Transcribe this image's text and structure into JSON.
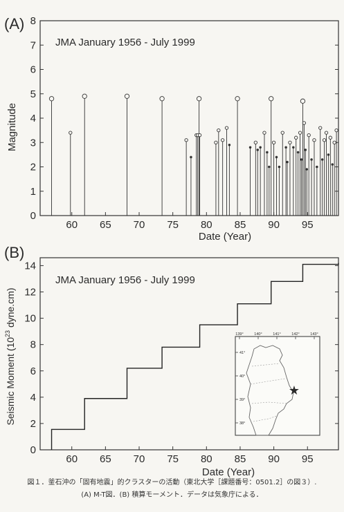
{
  "chart_data": [
    {
      "type": "scatter",
      "panel_label": "(A)",
      "title": "JMA  January 1956 - July 1999",
      "xlabel": "Date (Year)",
      "ylabel": "Magnitude",
      "xlim": [
        1955.3,
        1999.6
      ],
      "ylim": [
        0,
        8
      ],
      "xticks": [
        60,
        65,
        70,
        75,
        80,
        85,
        90,
        95
      ],
      "yticks": [
        0,
        1,
        2,
        3,
        4,
        5,
        6,
        7,
        8
      ],
      "grid": false,
      "x": [
        1957.0,
        1959.8,
        1961.9,
        1968.2,
        1973.4,
        1977.0,
        1977.7,
        1978.5,
        1978.7,
        1978.9,
        1979.0,
        1981.4,
        1981.8,
        1982.4,
        1983.0,
        1983.4,
        1984.6,
        1986.5,
        1987.3,
        1987.6,
        1988.0,
        1988.6,
        1989.0,
        1989.3,
        1989.6,
        1990.0,
        1990.4,
        1990.8,
        1991.3,
        1991.8,
        1992.0,
        1992.4,
        1992.9,
        1993.3,
        1993.6,
        1993.9,
        1994.1,
        1994.3,
        1994.5,
        1994.7,
        1994.9,
        1995.2,
        1995.6,
        1996.0,
        1996.4,
        1996.9,
        1997.2,
        1997.5,
        1997.8,
        1998.1,
        1998.4,
        1998.7,
        1999.0,
        1999.3
      ],
      "values": [
        4.8,
        3.4,
        4.9,
        4.9,
        4.8,
        3.1,
        2.4,
        3.3,
        3.3,
        4.8,
        3.3,
        3.0,
        3.5,
        3.1,
        3.6,
        2.9,
        4.8,
        2.8,
        3.0,
        2.7,
        2.8,
        3.4,
        2.6,
        2.0,
        4.8,
        3.0,
        2.4,
        2.0,
        3.4,
        2.8,
        2.2,
        3.0,
        2.8,
        3.2,
        2.6,
        3.4,
        2.3,
        4.7,
        3.8,
        2.7,
        1.9,
        3.3,
        2.3,
        3.1,
        2.0,
        3.6,
        2.3,
        3.1,
        3.4,
        2.5,
        3.2,
        2.1,
        3.0,
        3.5
      ]
    },
    {
      "type": "line",
      "step": true,
      "panel_label": "(B)",
      "title": "JMA  January 1956 - July 1999",
      "xlabel": "Date (Year)",
      "ylabel_main": "Seismic Moment (10",
      "ylabel_sup": "23",
      "ylabel_tail": " dyne.cm)",
      "xlim": [
        1955.3,
        1999.6
      ],
      "ylim": [
        0,
        14.6
      ],
      "xticks": [
        60,
        65,
        70,
        75,
        80,
        85,
        90,
        95
      ],
      "yticks": [
        0,
        2,
        4,
        6,
        8,
        10,
        12,
        14
      ],
      "grid": false,
      "x": [
        1957.0,
        1961.9,
        1968.2,
        1973.4,
        1979.0,
        1984.6,
        1989.6,
        1994.3,
        1999.6
      ],
      "values": [
        1.55,
        3.9,
        6.2,
        7.8,
        9.5,
        11.1,
        12.8,
        14.1,
        14.2
      ],
      "inset_map": {
        "top_ticks": [
          "139°",
          "140°",
          "141°",
          "142°",
          "143°"
        ],
        "left_ticks": [
          "41°",
          "40°",
          "39°",
          "38°"
        ]
      }
    }
  ],
  "caption": {
    "line1": "図１．釜石沖の「固有地震」的クラスターの活動（東北大学［課題番号：0501.2］の図３）.",
    "line2": "(A) M-T図．(B) 積算モーメント．データは気象庁による．"
  }
}
